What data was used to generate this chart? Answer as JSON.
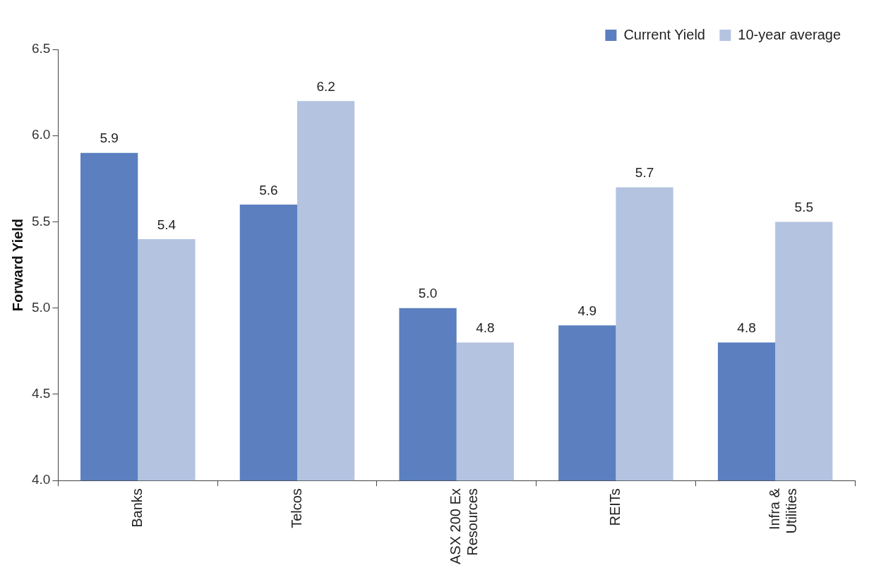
{
  "chart_data": {
    "type": "bar",
    "ylabel": "Forward Yield",
    "categories": [
      "Banks",
      "Telcos",
      "ASX 200 Ex Resources",
      "REITs",
      "Infra & Utilities"
    ],
    "series": [
      {
        "name": "Current Yield",
        "color": "#5b7fbf",
        "values": [
          5.9,
          5.6,
          5.0,
          4.9,
          4.8
        ],
        "value_labels": [
          "5.9",
          "5.6",
          "5.0",
          "4.9",
          "4.8"
        ]
      },
      {
        "name": "10-year average",
        "color": "#b4c3e0",
        "values": [
          5.4,
          6.2,
          4.8,
          5.7,
          5.5
        ],
        "value_labels": [
          "5.4",
          "6.2",
          "4.8",
          "5.7",
          "5.5"
        ]
      }
    ],
    "ylim": [
      4,
      6.5
    ],
    "yticks": [
      {
        "value": 4,
        "label": "4.0"
      },
      {
        "value": 4.5,
        "label": "4.5"
      },
      {
        "value": 5,
        "label": "5.0"
      },
      {
        "value": 5.5,
        "label": "5.5"
      },
      {
        "value": 6,
        "label": "6.0"
      },
      {
        "value": 6.5,
        "label": "6.5"
      }
    ],
    "grid": false,
    "legend": "top right"
  }
}
